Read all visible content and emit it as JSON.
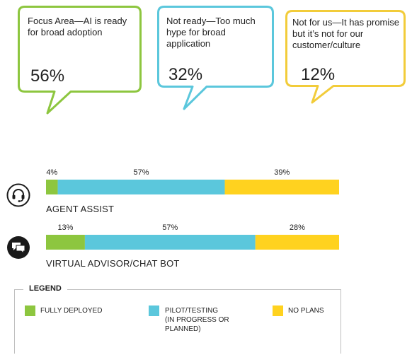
{
  "colors": {
    "green": "#8dc63f",
    "blue": "#5bc7dc",
    "yellow": "#ffd21f",
    "green_border": "#8dc63f",
    "blue_border": "#5bc7dc",
    "yellow_border": "#f2cc3a"
  },
  "bubbles": [
    {
      "text": "Focus Area—AI is ready for broad adoption",
      "value": "56%",
      "color": "#8dc63f"
    },
    {
      "text": "Not ready—Too much hype for broad application",
      "value": "32%",
      "color": "#5bc7dc"
    },
    {
      "text": "Not for us—It has promise but it’s not for our customer/culture",
      "value": "12%",
      "color": "#f2cc3a"
    }
  ],
  "chart_data": {
    "type": "bar",
    "orientation": "horizontal",
    "stacked": "100%",
    "categories": [
      "AGENT ASSIST",
      "VIRTUAL ADVISOR/CHAT BOT"
    ],
    "series": [
      {
        "name": "FULLY DEPLOYED",
        "color": "#8dc63f",
        "values": [
          4,
          13
        ]
      },
      {
        "name": "PILOT/TESTING (IN PROGRESS OR PLANNED)",
        "color": "#5bc7dc",
        "values": [
          57,
          57
        ]
      },
      {
        "name": "NO PLANS",
        "color": "#ffd21f",
        "values": [
          39,
          28
        ]
      }
    ],
    "data_labels": [
      [
        "4%",
        "57%",
        "39%"
      ],
      [
        "13%",
        "57%",
        "28%"
      ]
    ],
    "icons": [
      "headset-icon",
      "chat-icon"
    ],
    "legend": {
      "title": "LEGEND",
      "position": "bottom",
      "items": [
        {
          "label": "FULLY DEPLOYED",
          "color": "#8dc63f"
        },
        {
          "label": "PILOT/TESTING (IN PROGRESS OR PLANNED)",
          "label_lines": [
            "PILOT/TESTING",
            "(IN PROGRESS OR",
            "PLANNED)"
          ],
          "color": "#5bc7dc"
        },
        {
          "label": "NO PLANS",
          "color": "#ffd21f"
        }
      ]
    }
  }
}
